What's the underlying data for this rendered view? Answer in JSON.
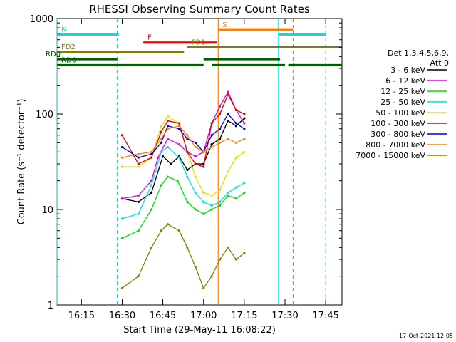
{
  "chart_data": {
    "type": "line",
    "title": "RHESSI Observing Summary Count Rates",
    "xlabel": "Start Time (29-May-11 16:08:22)",
    "ylabel": "Count Rate (s⁻¹ detector⁻¹)",
    "yscale": "log",
    "ylim": [
      1,
      1000
    ],
    "xlim_minutes": [
      16.1,
      17.85
    ],
    "x_tick_labels": [
      "16:15",
      "16:30",
      "16:45",
      "17:00",
      "17:15",
      "17:30",
      "17:45"
    ],
    "x_ticks": [
      16.25,
      16.5,
      16.75,
      17.0,
      17.25,
      17.5,
      17.75
    ],
    "y_tick_labels": [
      "1",
      "10",
      "100",
      "1000"
    ],
    "y_ticks": [
      1,
      10,
      100,
      1000
    ],
    "grid": false,
    "timestamp": "17-Oct-2021 12:05",
    "legend": {
      "header": [
        "Det 1,3,4,5,6,9,",
        "Att 0"
      ],
      "placement": "right"
    },
    "series": [
      {
        "name": "3 - 6 keV",
        "color": "#000000",
        "points": [
          [
            16.5,
            13
          ],
          [
            16.6,
            12
          ],
          [
            16.68,
            15
          ],
          [
            16.75,
            36
          ],
          [
            16.8,
            30
          ],
          [
            16.85,
            36
          ],
          [
            16.9,
            26
          ],
          [
            16.95,
            30
          ],
          [
            17.0,
            30
          ],
          [
            17.05,
            48
          ],
          [
            17.1,
            55
          ],
          [
            17.15,
            85
          ],
          [
            17.2,
            75
          ],
          [
            17.25,
            90
          ]
        ]
      },
      {
        "name": "6 - 12 keV",
        "color": "#e000e0",
        "points": [
          [
            16.5,
            13
          ],
          [
            16.6,
            14
          ],
          [
            16.68,
            20
          ],
          [
            16.72,
            35
          ],
          [
            16.78,
            55
          ],
          [
            16.85,
            48
          ],
          [
            16.9,
            40
          ],
          [
            16.95,
            36
          ],
          [
            17.0,
            40
          ],
          [
            17.05,
            80
          ],
          [
            17.1,
            120
          ],
          [
            17.15,
            170
          ],
          [
            17.2,
            110
          ],
          [
            17.25,
            80
          ]
        ]
      },
      {
        "name": "12 - 25 keV",
        "color": "#00e000",
        "points": [
          [
            16.5,
            5
          ],
          [
            16.6,
            6
          ],
          [
            16.68,
            10
          ],
          [
            16.74,
            18
          ],
          [
            16.78,
            22
          ],
          [
            16.84,
            20
          ],
          [
            16.9,
            12
          ],
          [
            16.95,
            10
          ],
          [
            17.0,
            9
          ],
          [
            17.05,
            10
          ],
          [
            17.1,
            11
          ],
          [
            17.15,
            14
          ],
          [
            17.2,
            13
          ],
          [
            17.25,
            15
          ]
        ]
      },
      {
        "name": "25 - 50 keV",
        "color": "#00e0e0",
        "points": [
          [
            16.5,
            8
          ],
          [
            16.6,
            9
          ],
          [
            16.68,
            18
          ],
          [
            16.74,
            40
          ],
          [
            16.78,
            45
          ],
          [
            16.85,
            35
          ],
          [
            16.9,
            22
          ],
          [
            16.95,
            15
          ],
          [
            17.0,
            12
          ],
          [
            17.05,
            11
          ],
          [
            17.1,
            12
          ],
          [
            17.15,
            15
          ],
          [
            17.2,
            17
          ],
          [
            17.25,
            19
          ]
        ]
      },
      {
        "name": "50 - 100 keV",
        "color": "#e0e000",
        "points": [
          [
            16.5,
            28
          ],
          [
            16.6,
            28
          ],
          [
            16.68,
            35
          ],
          [
            16.74,
            75
          ],
          [
            16.78,
            95
          ],
          [
            16.85,
            80
          ],
          [
            16.9,
            40
          ],
          [
            16.95,
            22
          ],
          [
            17.0,
            15
          ],
          [
            17.05,
            14
          ],
          [
            17.1,
            16
          ],
          [
            17.15,
            25
          ],
          [
            17.2,
            35
          ],
          [
            17.25,
            40
          ]
        ]
      },
      {
        "name": "100 - 300 keV",
        "color": "#e00000",
        "points": [
          [
            16.5,
            60
          ],
          [
            16.6,
            30
          ],
          [
            16.68,
            35
          ],
          [
            16.74,
            65
          ],
          [
            16.78,
            85
          ],
          [
            16.85,
            80
          ],
          [
            16.9,
            40
          ],
          [
            16.95,
            30
          ],
          [
            17.0,
            28
          ],
          [
            17.05,
            80
          ],
          [
            17.1,
            100
          ],
          [
            17.15,
            160
          ],
          [
            17.2,
            110
          ],
          [
            17.25,
            100
          ]
        ]
      },
      {
        "name": "300 - 800 keV",
        "color": "#0000e0",
        "points": [
          [
            16.5,
            45
          ],
          [
            16.6,
            35
          ],
          [
            16.68,
            38
          ],
          [
            16.74,
            50
          ],
          [
            16.78,
            75
          ],
          [
            16.85,
            70
          ],
          [
            16.9,
            55
          ],
          [
            16.95,
            50
          ],
          [
            17.0,
            40
          ],
          [
            17.05,
            60
          ],
          [
            17.1,
            70
          ],
          [
            17.15,
            100
          ],
          [
            17.2,
            80
          ],
          [
            17.25,
            70
          ]
        ]
      },
      {
        "name": "800 - 7000 keV",
        "color": "#ff8000",
        "points": [
          [
            16.5,
            35
          ],
          [
            16.6,
            38
          ],
          [
            16.68,
            40
          ],
          [
            16.74,
            55
          ],
          [
            16.78,
            70
          ],
          [
            16.85,
            75
          ],
          [
            16.9,
            60
          ],
          [
            16.95,
            45
          ],
          [
            17.0,
            40
          ],
          [
            17.05,
            45
          ],
          [
            17.1,
            50
          ],
          [
            17.15,
            55
          ],
          [
            17.2,
            50
          ],
          [
            17.25,
            55
          ]
        ]
      },
      {
        "name": "7000 - 15000 keV",
        "color": "#808000",
        "points": [
          [
            16.5,
            1.5
          ],
          [
            16.6,
            2
          ],
          [
            16.68,
            4
          ],
          [
            16.74,
            6
          ],
          [
            16.78,
            7
          ],
          [
            16.85,
            6
          ],
          [
            16.9,
            4
          ],
          [
            16.95,
            2.5
          ],
          [
            17.0,
            1.5
          ],
          [
            17.05,
            2
          ],
          [
            17.1,
            3
          ],
          [
            17.15,
            4
          ],
          [
            17.2,
            3
          ],
          [
            17.25,
            3.5
          ]
        ]
      }
    ],
    "bars": [
      {
        "label": "N",
        "color": "#00e0e0",
        "level": 680,
        "segments": [
          [
            16.1,
            16.48
          ],
          [
            17.46,
            17.75
          ]
        ]
      },
      {
        "label": "S",
        "color": "#ff8000",
        "level": 760,
        "segments": [
          [
            17.09,
            17.55
          ]
        ]
      },
      {
        "label": "F",
        "color": "#e00000",
        "level": 560,
        "segments": [
          [
            16.63,
            17.08
          ]
        ]
      },
      {
        "label": "FD1",
        "color": "#808000",
        "level": 500,
        "segments": [
          [
            16.9,
            17.85
          ]
        ]
      },
      {
        "label": "FD2",
        "color": "#808000",
        "level": 445,
        "segments": [
          [
            16.1,
            16.88
          ]
        ]
      },
      {
        "label": "RD0",
        "color": "#006000",
        "level": 375,
        "segments": [
          [
            16.1,
            16.47
          ],
          [
            17.0,
            17.47
          ]
        ]
      },
      {
        "label": "RD6",
        "color": "#006000",
        "level": 325,
        "segments": [
          [
            16.1,
            16.47
          ],
          [
            16.47,
            17.0
          ],
          [
            17.05,
            17.5
          ],
          [
            17.52,
            17.85
          ]
        ]
      }
    ],
    "vlines": [
      {
        "x": 16.1,
        "color": "#00e0e0",
        "style": "solid"
      },
      {
        "x": 16.47,
        "color": "#00e0e0",
        "style": "dashed"
      },
      {
        "x": 17.09,
        "color": "#ff8000",
        "style": "solid"
      },
      {
        "x": 17.46,
        "color": "#00e0e0",
        "style": "solid"
      },
      {
        "x": 17.55,
        "color": "#ff8000",
        "style": "dashed"
      },
      {
        "x": 17.75,
        "color": "#00e0e0",
        "style": "dashed"
      }
    ]
  }
}
